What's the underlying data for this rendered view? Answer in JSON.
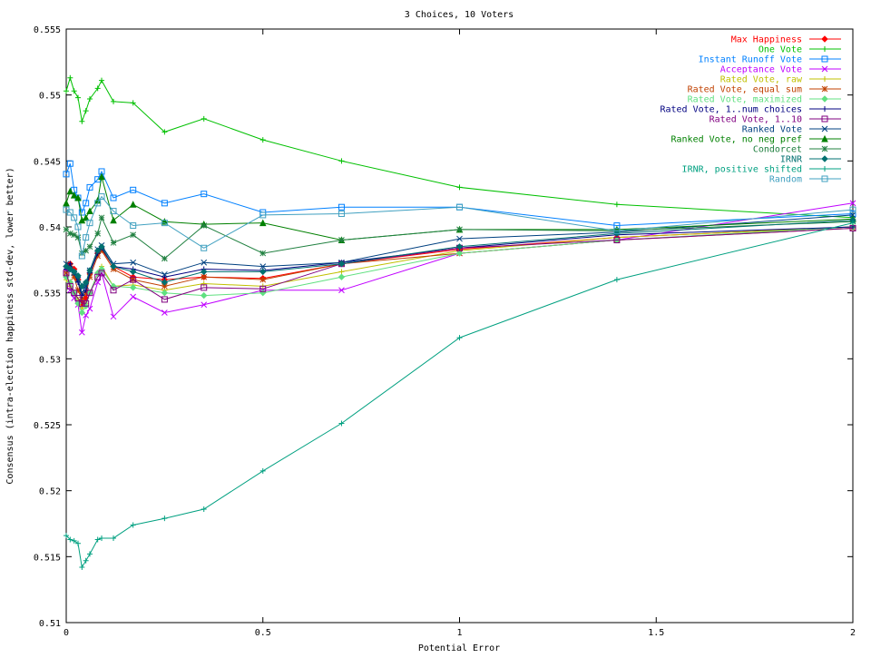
{
  "chart_data": {
    "type": "line",
    "title": "3 Choices, 10 Voters",
    "xlabel": "Potential Error",
    "ylabel": "Consensus (intra-election happiness std-dev, lower better)",
    "xlim": [
      0,
      2
    ],
    "ylim": [
      0.51,
      0.555
    ],
    "xticks": [
      0,
      0.5,
      1,
      1.5,
      2
    ],
    "xtick_labels": [
      "0",
      "0.5",
      "1",
      "1.5",
      "2"
    ],
    "yticks": [
      0.51,
      0.515,
      0.52,
      0.525,
      0.53,
      0.535,
      0.54,
      0.545,
      0.55,
      0.555
    ],
    "ytick_labels": [
      "0.51",
      "0.515",
      "0.52",
      "0.525",
      "0.53",
      "0.535",
      "0.54",
      "0.545",
      "0.55",
      "0.555"
    ],
    "grid": false,
    "legend": "top-right",
    "x": [
      0,
      0.01,
      0.02,
      0.03,
      0.04,
      0.05,
      0.06,
      0.08,
      0.09,
      0.12,
      0.17,
      0.25,
      0.35,
      0.5,
      0.7,
      1,
      1.4,
      2
    ],
    "series": [
      {
        "name": "Max Happiness",
        "color": "#ff0000",
        "marker": "diamond",
        "values": [
          0.537,
          0.5372,
          0.5368,
          0.536,
          0.5342,
          0.5346,
          0.5365,
          0.538,
          0.5383,
          0.537,
          0.5362,
          0.536,
          0.5362,
          0.5361,
          0.5372,
          0.5383,
          0.5392,
          0.54
        ]
      },
      {
        "name": "One Vote",
        "color": "#00c000",
        "marker": "plus",
        "values": [
          0.5503,
          0.5513,
          0.5503,
          0.5498,
          0.548,
          0.5488,
          0.5497,
          0.5505,
          0.5511,
          0.5495,
          0.5494,
          0.5472,
          0.5482,
          0.5466,
          0.545,
          0.543,
          0.5417,
          0.5407
        ]
      },
      {
        "name": "Instant Runoff Vote",
        "color": "#0080ff",
        "marker": "square",
        "values": [
          0.544,
          0.5448,
          0.5428,
          0.5422,
          0.5411,
          0.5418,
          0.543,
          0.5436,
          0.5442,
          0.5422,
          0.5428,
          0.5418,
          0.5425,
          0.5411,
          0.5415,
          0.5415,
          0.5401,
          0.541
        ]
      },
      {
        "name": "Acceptance Vote",
        "color": "#c000ff",
        "marker": "x",
        "values": [
          0.5368,
          0.5352,
          0.5346,
          0.5341,
          0.532,
          0.5333,
          0.5338,
          0.5358,
          0.5365,
          0.5332,
          0.5347,
          0.5335,
          0.5341,
          0.5352,
          0.5352,
          0.538,
          0.539,
          0.5418
        ]
      },
      {
        "name": "Rated Vote, raw",
        "color": "#c0c000",
        "marker": "plus",
        "values": [
          0.536,
          0.5355,
          0.535,
          0.5345,
          0.5338,
          0.5342,
          0.535,
          0.5365,
          0.537,
          0.5355,
          0.5356,
          0.5352,
          0.5357,
          0.5355,
          0.5366,
          0.5382,
          0.5392,
          0.54
        ]
      },
      {
        "name": "Rated Vote, equal sum",
        "color": "#c04000",
        "marker": "star",
        "values": [
          0.5365,
          0.537,
          0.5362,
          0.5352,
          0.5345,
          0.535,
          0.5362,
          0.5378,
          0.5382,
          0.5368,
          0.536,
          0.5355,
          0.5362,
          0.536,
          0.5372,
          0.538,
          0.539,
          0.5399
        ]
      },
      {
        "name": "Rated Vote, maximized",
        "color": "#60e080",
        "marker": "diamond",
        "values": [
          0.5362,
          0.5358,
          0.535,
          0.5342,
          0.5335,
          0.534,
          0.535,
          0.5365,
          0.5368,
          0.5355,
          0.5354,
          0.535,
          0.5348,
          0.535,
          0.5362,
          0.538,
          0.539,
          0.54
        ]
      },
      {
        "name": "Rated Vote, 1..num choices",
        "color": "#000080",
        "marker": "plus",
        "values": [
          0.5368,
          0.5372,
          0.5365,
          0.5358,
          0.5348,
          0.5352,
          0.5365,
          0.538,
          0.5384,
          0.537,
          0.5368,
          0.5362,
          0.5368,
          0.5367,
          0.5373,
          0.5384,
          0.5394,
          0.54
        ]
      },
      {
        "name": "Rated Vote, 1..10",
        "color": "#800080",
        "marker": "square",
        "values": [
          0.5365,
          0.5355,
          0.535,
          0.5346,
          0.5342,
          0.5342,
          0.535,
          0.5362,
          0.5365,
          0.5352,
          0.536,
          0.5345,
          0.5354,
          0.5353,
          0.5372,
          0.5384,
          0.539,
          0.5399
        ]
      },
      {
        "name": "Ranked Vote",
        "color": "#004080",
        "marker": "x",
        "values": [
          0.5372,
          0.5368,
          0.5365,
          0.536,
          0.535,
          0.5355,
          0.5367,
          0.5383,
          0.5386,
          0.5372,
          0.5373,
          0.5364,
          0.5373,
          0.537,
          0.5373,
          0.5391,
          0.5396,
          0.5409
        ]
      },
      {
        "name": "Ranked Vote, no neg pref",
        "color": "#008000",
        "marker": "triangle",
        "values": [
          0.5418,
          0.5427,
          0.5424,
          0.5422,
          0.5405,
          0.5407,
          0.5412,
          0.542,
          0.5438,
          0.5405,
          0.5417,
          0.5404,
          0.5402,
          0.5403,
          0.539,
          0.5398,
          0.5398,
          0.5406
        ]
      },
      {
        "name": "Condorcet",
        "color": "#208040",
        "marker": "star",
        "values": [
          0.5398,
          0.5395,
          0.5394,
          0.5392,
          0.538,
          0.5382,
          0.5385,
          0.5395,
          0.5407,
          0.5388,
          0.5394,
          0.5376,
          0.5401,
          0.538,
          0.539,
          0.5398,
          0.5397,
          0.5404
        ]
      },
      {
        "name": "IRNR",
        "color": "#007070",
        "marker": "diamond",
        "values": [
          0.537,
          0.5368,
          0.5366,
          0.5363,
          0.5355,
          0.5358,
          0.5367,
          0.5382,
          0.5385,
          0.537,
          0.5366,
          0.5358,
          0.5366,
          0.5366,
          0.5372,
          0.5385,
          0.5395,
          0.5405
        ]
      },
      {
        "name": "IRNR, positive shifted",
        "color": "#00a080",
        "marker": "plus",
        "values": [
          0.5166,
          0.5163,
          0.5162,
          0.516,
          0.5142,
          0.5147,
          0.5152,
          0.5163,
          0.5164,
          0.5164,
          0.5174,
          0.5179,
          0.5186,
          0.5215,
          0.5251,
          0.5316,
          0.536,
          0.5403
        ]
      },
      {
        "name": "Random",
        "color": "#40a0c0",
        "marker": "square",
        "values": [
          0.5413,
          0.5411,
          0.5407,
          0.54,
          0.5378,
          0.5392,
          0.5403,
          0.5418,
          0.5423,
          0.5412,
          0.5401,
          0.5403,
          0.5384,
          0.5409,
          0.541,
          0.5415,
          0.5397,
          0.5413
        ]
      }
    ]
  }
}
